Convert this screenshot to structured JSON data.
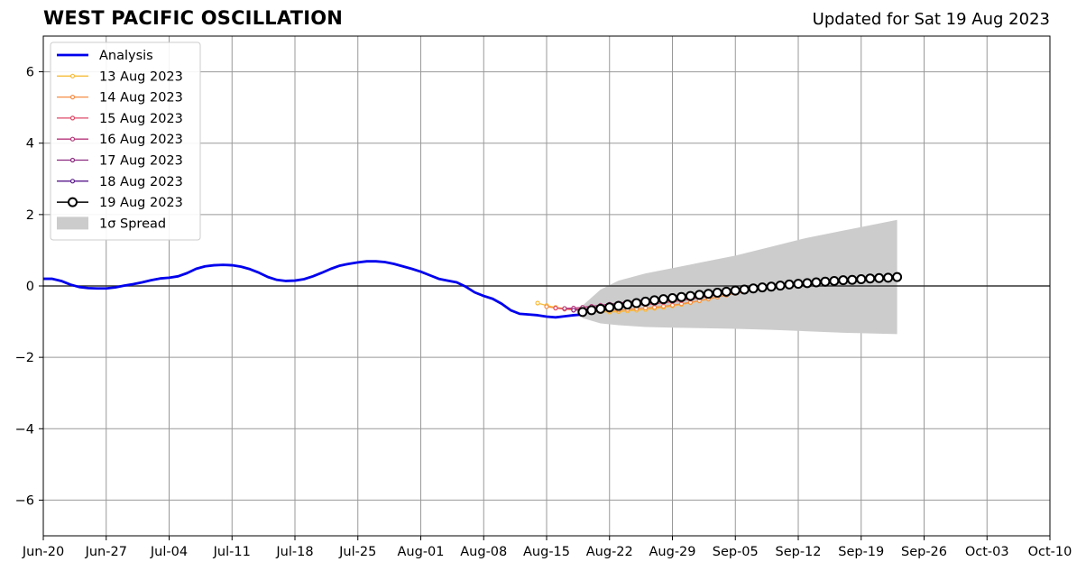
{
  "chart_data": {
    "type": "line",
    "title": "WEST PACIFIC OSCILLATION",
    "subtitle": "Updated for Sat 19 Aug 2023",
    "xlim": [
      "Jun-20",
      "Oct-10"
    ],
    "ylim": [
      -7,
      7
    ],
    "x_ticks": [
      "Jun-20",
      "Jun-27",
      "Jul-04",
      "Jul-11",
      "Jul-18",
      "Jul-25",
      "Aug-01",
      "Aug-08",
      "Aug-15",
      "Aug-22",
      "Aug-29",
      "Sep-05",
      "Sep-12",
      "Sep-19",
      "Sep-26",
      "Oct-03",
      "Oct-10"
    ],
    "y_ticks": [
      -6,
      -4,
      -2,
      0,
      2,
      4,
      6
    ],
    "y_tick_labels": [
      "−6",
      "−4",
      "−2",
      "0",
      "2",
      "4",
      "6"
    ],
    "grid": true,
    "legend_position": "top-left",
    "spread_label": "1σ Spread",
    "analysis": {
      "name": "Analysis",
      "color": "#0000ee",
      "x": [
        "Jun-20",
        "Jun-21",
        "Jun-22",
        "Jun-23",
        "Jun-24",
        "Jun-25",
        "Jun-26",
        "Jun-27",
        "Jun-28",
        "Jun-29",
        "Jun-30",
        "Jul-01",
        "Jul-02",
        "Jul-03",
        "Jul-04",
        "Jul-05",
        "Jul-06",
        "Jul-07",
        "Jul-08",
        "Jul-09",
        "Jul-10",
        "Jul-11",
        "Jul-12",
        "Jul-13",
        "Jul-14",
        "Jul-15",
        "Jul-16",
        "Jul-17",
        "Jul-18",
        "Jul-19",
        "Jul-20",
        "Jul-21",
        "Jul-22",
        "Jul-23",
        "Jul-24",
        "Jul-25",
        "Jul-26",
        "Jul-27",
        "Jul-28",
        "Jul-29",
        "Jul-30",
        "Jul-31",
        "Aug-01",
        "Aug-02",
        "Aug-03",
        "Aug-04",
        "Aug-05",
        "Aug-06",
        "Aug-07",
        "Aug-08",
        "Aug-09",
        "Aug-10",
        "Aug-11",
        "Aug-12",
        "Aug-13",
        "Aug-14",
        "Aug-15",
        "Aug-16",
        "Aug-17",
        "Aug-18",
        "Aug-19"
      ],
      "y": [
        0.2,
        0.2,
        0.14,
        0.04,
        -0.03,
        -0.06,
        -0.07,
        -0.07,
        -0.04,
        0.01,
        0.05,
        0.1,
        0.16,
        0.21,
        0.23,
        0.27,
        0.36,
        0.48,
        0.55,
        0.58,
        0.59,
        0.58,
        0.54,
        0.47,
        0.37,
        0.25,
        0.17,
        0.14,
        0.15,
        0.19,
        0.27,
        0.37,
        0.48,
        0.57,
        0.62,
        0.66,
        0.69,
        0.69,
        0.67,
        0.62,
        0.55,
        0.48,
        0.4,
        0.3,
        0.2,
        0.15,
        0.1,
        -0.02,
        -0.18,
        -0.28,
        -0.36,
        -0.5,
        -0.68,
        -0.78,
        -0.8,
        -0.82,
        -0.86,
        -0.88,
        -0.85,
        -0.82,
        -0.8
      ]
    },
    "forecasts": [
      {
        "name": "13 Aug 2023",
        "color": "#f7bc3a",
        "x": [
          "Aug-14",
          "Aug-15",
          "Aug-16",
          "Aug-17",
          "Aug-18",
          "Aug-19",
          "Aug-20",
          "Aug-21",
          "Aug-22",
          "Aug-23",
          "Aug-24",
          "Aug-25",
          "Aug-26",
          "Aug-27",
          "Aug-28",
          "Aug-29",
          "Aug-30",
          "Aug-31",
          "Sep-01",
          "Sep-02",
          "Sep-03",
          "Sep-04",
          "Sep-05",
          "Sep-06",
          "Sep-07",
          "Sep-08",
          "Sep-09",
          "Sep-10",
          "Sep-11",
          "Sep-12",
          "Sep-13",
          "Sep-14",
          "Sep-15",
          "Sep-16",
          "Sep-17",
          "Sep-18",
          "Sep-19",
          "Sep-20",
          "Sep-21",
          "Sep-22",
          "Sep-23"
        ],
        "y": [
          -0.48,
          -0.55,
          -0.6,
          -0.63,
          -0.66,
          -0.68,
          -0.7,
          -0.72,
          -0.73,
          -0.72,
          -0.7,
          -0.68,
          -0.66,
          -0.63,
          -0.6,
          -0.56,
          -0.52,
          -0.47,
          -0.42,
          -0.37,
          -0.31,
          -0.26,
          -0.2,
          -0.15,
          -0.1,
          -0.05,
          -0.01,
          0.02,
          0.05,
          0.07,
          0.09,
          0.11,
          0.13,
          0.14,
          0.16,
          0.17,
          0.19,
          0.2,
          0.21,
          0.22,
          0.23
        ]
      },
      {
        "name": "14 Aug 2023",
        "color": "#f68d45",
        "x": [
          "Aug-15",
          "Aug-16",
          "Aug-17",
          "Aug-18",
          "Aug-19",
          "Aug-20",
          "Aug-21",
          "Aug-22",
          "Aug-23",
          "Aug-24",
          "Aug-25",
          "Aug-26",
          "Aug-27",
          "Aug-28",
          "Aug-29",
          "Aug-30",
          "Aug-31",
          "Sep-01",
          "Sep-02",
          "Sep-03",
          "Sep-04",
          "Sep-05",
          "Sep-06",
          "Sep-07",
          "Sep-08",
          "Sep-09",
          "Sep-10",
          "Sep-11",
          "Sep-12",
          "Sep-13",
          "Sep-14",
          "Sep-15",
          "Sep-16",
          "Sep-17",
          "Sep-18",
          "Sep-19",
          "Sep-20",
          "Sep-21",
          "Sep-22",
          "Sep-23"
        ],
        "y": [
          -0.58,
          -0.62,
          -0.65,
          -0.67,
          -0.69,
          -0.7,
          -0.7,
          -0.69,
          -0.68,
          -0.66,
          -0.64,
          -0.62,
          -0.6,
          -0.57,
          -0.54,
          -0.5,
          -0.46,
          -0.41,
          -0.36,
          -0.31,
          -0.26,
          -0.21,
          -0.16,
          -0.11,
          -0.07,
          -0.03,
          0.01,
          0.04,
          0.07,
          0.09,
          0.11,
          0.13,
          0.15,
          0.16,
          0.18,
          0.19,
          0.2,
          0.22,
          0.23,
          0.24
        ]
      },
      {
        "name": "15 Aug 2023",
        "color": "#de4968",
        "x": [
          "Aug-16",
          "Aug-17",
          "Aug-18",
          "Aug-19",
          "Aug-20",
          "Aug-21",
          "Aug-22",
          "Aug-23",
          "Aug-24",
          "Aug-25",
          "Aug-26",
          "Aug-27",
          "Aug-28",
          "Aug-29",
          "Aug-30",
          "Aug-31",
          "Sep-01",
          "Sep-02",
          "Sep-03",
          "Sep-04",
          "Sep-05",
          "Sep-06",
          "Sep-07",
          "Sep-08",
          "Sep-09",
          "Sep-10",
          "Sep-11",
          "Sep-12",
          "Sep-13",
          "Sep-14",
          "Sep-15",
          "Sep-16",
          "Sep-17",
          "Sep-18",
          "Sep-19",
          "Sep-20",
          "Sep-21",
          "Sep-22",
          "Sep-23"
        ],
        "y": [
          -0.62,
          -0.64,
          -0.65,
          -0.65,
          -0.64,
          -0.62,
          -0.6,
          -0.58,
          -0.56,
          -0.54,
          -0.52,
          -0.5,
          -0.47,
          -0.44,
          -0.41,
          -0.37,
          -0.33,
          -0.29,
          -0.25,
          -0.21,
          -0.17,
          -0.13,
          -0.09,
          -0.05,
          -0.02,
          0.01,
          0.04,
          0.07,
          0.09,
          0.11,
          0.13,
          0.15,
          0.16,
          0.18,
          0.19,
          0.2,
          0.22,
          0.23,
          0.24
        ]
      },
      {
        "name": "16 Aug 2023",
        "color": "#b5367a",
        "x": [
          "Aug-17",
          "Aug-18",
          "Aug-19",
          "Aug-20",
          "Aug-21",
          "Aug-22",
          "Aug-23",
          "Aug-24",
          "Aug-25",
          "Aug-26",
          "Aug-27",
          "Aug-28",
          "Aug-29",
          "Aug-30",
          "Aug-31",
          "Sep-01",
          "Sep-02",
          "Sep-03",
          "Sep-04",
          "Sep-05",
          "Sep-06",
          "Sep-07",
          "Sep-08",
          "Sep-09",
          "Sep-10",
          "Sep-11",
          "Sep-12",
          "Sep-13",
          "Sep-14",
          "Sep-15",
          "Sep-16",
          "Sep-17",
          "Sep-18",
          "Sep-19",
          "Sep-20",
          "Sep-21",
          "Sep-22",
          "Sep-23"
        ],
        "y": [
          -0.63,
          -0.62,
          -0.6,
          -0.57,
          -0.54,
          -0.51,
          -0.48,
          -0.45,
          -0.42,
          -0.39,
          -0.36,
          -0.33,
          -0.3,
          -0.27,
          -0.24,
          -0.21,
          -0.18,
          -0.15,
          -0.12,
          -0.09,
          -0.06,
          -0.03,
          0,
          0.03,
          0.05,
          0.08,
          0.1,
          0.12,
          0.14,
          0.16,
          0.17,
          0.19,
          0.2,
          0.21,
          0.22,
          0.23,
          0.24,
          0.25
        ]
      },
      {
        "name": "17 Aug 2023",
        "color": "#8c2981",
        "x": [
          "Aug-18",
          "Aug-19",
          "Aug-20",
          "Aug-21",
          "Aug-22",
          "Aug-23",
          "Aug-24",
          "Aug-25",
          "Aug-26",
          "Aug-27",
          "Aug-28",
          "Aug-29",
          "Aug-30",
          "Aug-31",
          "Sep-01",
          "Sep-02",
          "Sep-03",
          "Sep-04",
          "Sep-05",
          "Sep-06",
          "Sep-07",
          "Sep-08",
          "Sep-09",
          "Sep-10",
          "Sep-11",
          "Sep-12",
          "Sep-13",
          "Sep-14",
          "Sep-15",
          "Sep-16",
          "Sep-17",
          "Sep-18",
          "Sep-19",
          "Sep-20",
          "Sep-21",
          "Sep-22",
          "Sep-23"
        ],
        "y": [
          -0.68,
          -0.66,
          -0.63,
          -0.6,
          -0.56,
          -0.52,
          -0.48,
          -0.45,
          -0.42,
          -0.39,
          -0.36,
          -0.33,
          -0.3,
          -0.27,
          -0.24,
          -0.21,
          -0.18,
          -0.15,
          -0.12,
          -0.09,
          -0.06,
          -0.03,
          0,
          0.03,
          0.05,
          0.08,
          0.1,
          0.12,
          0.14,
          0.16,
          0.17,
          0.19,
          0.2,
          0.21,
          0.22,
          0.23,
          0.24
        ]
      },
      {
        "name": "18 Aug 2023",
        "color": "#5a1a8c",
        "x": [
          "Aug-19",
          "Aug-20",
          "Aug-21",
          "Aug-22",
          "Aug-23",
          "Aug-24",
          "Aug-25",
          "Aug-26",
          "Aug-27",
          "Aug-28",
          "Aug-29",
          "Aug-30",
          "Aug-31",
          "Sep-01",
          "Sep-02",
          "Sep-03",
          "Sep-04",
          "Sep-05",
          "Sep-06",
          "Sep-07",
          "Sep-08",
          "Sep-09",
          "Sep-10",
          "Sep-11",
          "Sep-12",
          "Sep-13",
          "Sep-14",
          "Sep-15",
          "Sep-16",
          "Sep-17",
          "Sep-18",
          "Sep-19",
          "Sep-20",
          "Sep-21",
          "Sep-22",
          "Sep-23"
        ],
        "y": [
          -0.72,
          -0.68,
          -0.64,
          -0.6,
          -0.56,
          -0.52,
          -0.48,
          -0.45,
          -0.42,
          -0.39,
          -0.36,
          -0.33,
          -0.3,
          -0.27,
          -0.24,
          -0.21,
          -0.18,
          -0.15,
          -0.12,
          -0.09,
          -0.06,
          -0.03,
          0,
          0.03,
          0.05,
          0.08,
          0.1,
          0.12,
          0.14,
          0.16,
          0.17,
          0.19,
          0.2,
          0.21,
          0.22,
          0.23
        ]
      },
      {
        "name": "19 Aug 2023",
        "color": "#000000",
        "x": [
          "Aug-19",
          "Aug-20",
          "Aug-21",
          "Aug-22",
          "Aug-23",
          "Aug-24",
          "Aug-25",
          "Aug-26",
          "Aug-27",
          "Aug-28",
          "Aug-29",
          "Aug-30",
          "Aug-31",
          "Sep-01",
          "Sep-02",
          "Sep-03",
          "Sep-04",
          "Sep-05",
          "Sep-06",
          "Sep-07",
          "Sep-08",
          "Sep-09",
          "Sep-10",
          "Sep-11",
          "Sep-12",
          "Sep-13",
          "Sep-14",
          "Sep-15",
          "Sep-16",
          "Sep-17",
          "Sep-18",
          "Sep-19",
          "Sep-20",
          "Sep-21",
          "Sep-22",
          "Sep-23"
        ],
        "y": [
          -0.73,
          -0.68,
          -0.64,
          -0.6,
          -0.56,
          -0.52,
          -0.48,
          -0.44,
          -0.4,
          -0.37,
          -0.34,
          -0.31,
          -0.28,
          -0.25,
          -0.22,
          -0.19,
          -0.16,
          -0.13,
          -0.1,
          -0.07,
          -0.04,
          -0.02,
          0.01,
          0.04,
          0.06,
          0.08,
          0.1,
          0.12,
          0.14,
          0.16,
          0.17,
          0.19,
          0.21,
          0.22,
          0.23,
          0.25
        ]
      }
    ],
    "spread": {
      "color": "#cccccc",
      "x": [
        "Aug-19",
        "Aug-21",
        "Aug-23",
        "Aug-26",
        "Aug-29",
        "Sep-01",
        "Sep-05",
        "Sep-09",
        "Sep-13",
        "Sep-17",
        "Sep-23"
      ],
      "upper": [
        -0.55,
        -0.1,
        0.15,
        0.35,
        0.5,
        0.65,
        0.85,
        1.1,
        1.35,
        1.55,
        1.85
      ],
      "lower": [
        -0.9,
        -1.05,
        -1.1,
        -1.15,
        -1.17,
        -1.18,
        -1.2,
        -1.23,
        -1.27,
        -1.31,
        -1.35
      ]
    }
  }
}
